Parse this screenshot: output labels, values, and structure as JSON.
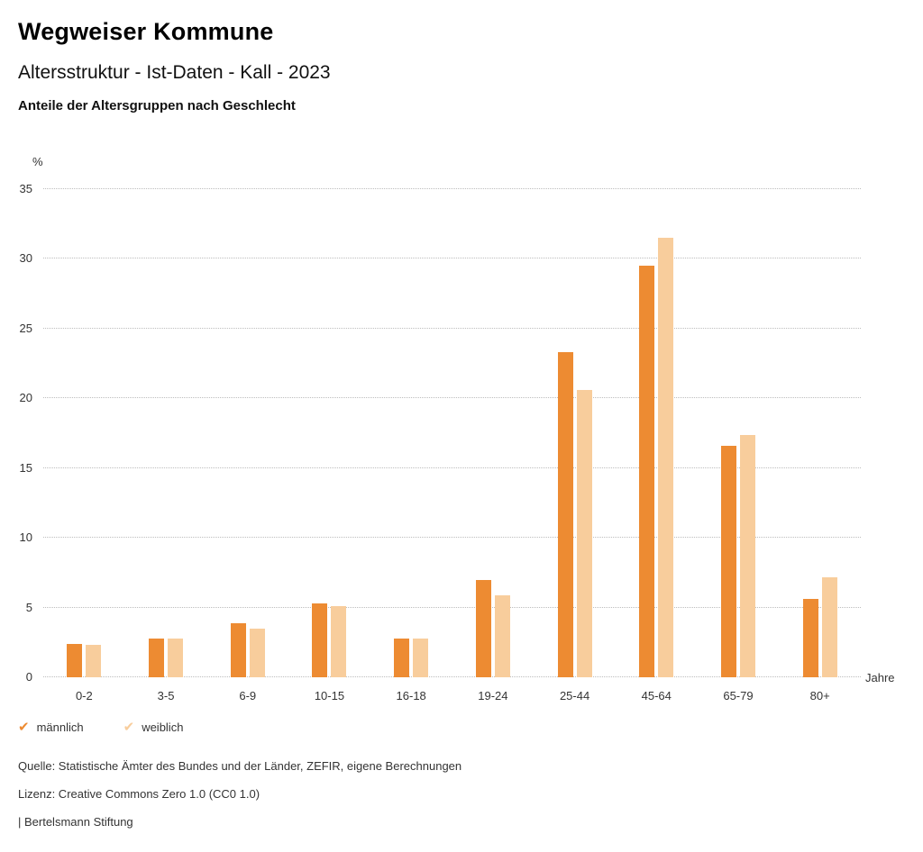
{
  "header": {
    "title": "Wegweiser Kommune",
    "subtitle": "Altersstruktur - Ist-Daten - Kall - 2023",
    "chart_heading": "Anteile der Altersgruppen nach Geschlecht"
  },
  "chart_data": {
    "type": "bar",
    "title": "Anteile der Altersgruppen nach Geschlecht",
    "categories": [
      "0-2",
      "3-5",
      "6-9",
      "10-15",
      "16-18",
      "19-24",
      "25-44",
      "45-64",
      "65-79",
      "80+"
    ],
    "series": [
      {
        "name": "männlich",
        "color": "#ed8b32",
        "values": [
          2.4,
          2.8,
          3.9,
          5.3,
          2.8,
          7.0,
          23.3,
          29.5,
          16.6,
          5.6
        ]
      },
      {
        "name": "weiblich",
        "color": "#f8cd9c",
        "values": [
          2.3,
          2.8,
          3.5,
          5.1,
          2.8,
          5.9,
          20.6,
          31.5,
          17.4,
          7.2
        ]
      }
    ],
    "ylabel": "%",
    "xlabel": "Jahre",
    "ylim": [
      0,
      35
    ],
    "yticks": [
      0,
      5,
      10,
      15,
      20,
      25,
      30,
      35
    ],
    "grid": "dotted horizontal",
    "legend_position": "bottom-left"
  },
  "footer": {
    "source": "Quelle: Statistische Ämter des Bundes und der Länder, ZEFIR, eigene Berechnungen",
    "license": "Lizenz: Creative Commons Zero 1.0 (CC0 1.0)",
    "attribution": "| Bertelsmann Stiftung"
  },
  "colors": {
    "maennlich": "#ed8b32",
    "weiblich": "#f8cd9c",
    "gridline": "#bdbdbd"
  }
}
